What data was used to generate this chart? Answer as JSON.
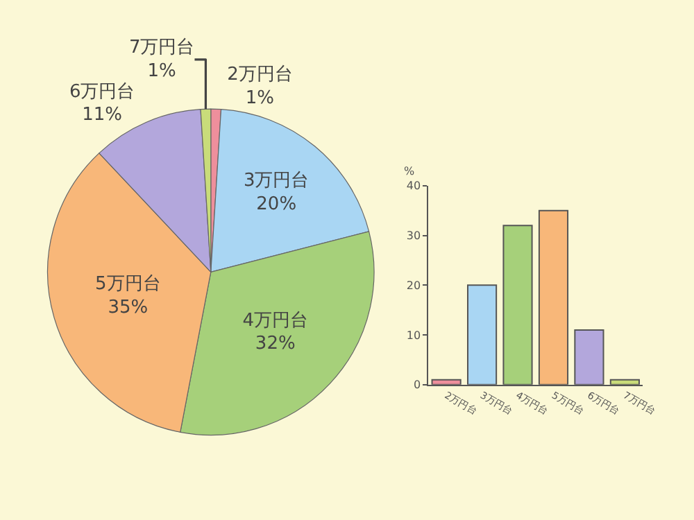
{
  "chart_data": [
    {
      "type": "pie",
      "categories": [
        "2万円台",
        "3万円台",
        "4万円台",
        "5万円台",
        "6万円台",
        "7万円台"
      ],
      "values": [
        1,
        20,
        32,
        35,
        11,
        1
      ],
      "value_labels": [
        "1%",
        "20%",
        "32%",
        "35%",
        "11%",
        "1%"
      ],
      "colors": [
        "#ee8f9c",
        "#a9d6f3",
        "#a6d07a",
        "#f8b779",
        "#b3a7dc",
        "#c9dc7a"
      ]
    },
    {
      "type": "bar",
      "categories": [
        "2万円台",
        "3万円台",
        "4万円台",
        "5万円台",
        "6万円台",
        "7万円台"
      ],
      "values": [
        1,
        20,
        32,
        35,
        11,
        1
      ],
      "colors": [
        "#ee8f9c",
        "#a9d6f3",
        "#a6d07a",
        "#f8b779",
        "#b3a7dc",
        "#c9dc7a"
      ],
      "ylabel": "%",
      "ylim": [
        0,
        40
      ],
      "yticks": [
        0,
        10,
        20,
        30,
        40
      ],
      "grid": false
    }
  ]
}
